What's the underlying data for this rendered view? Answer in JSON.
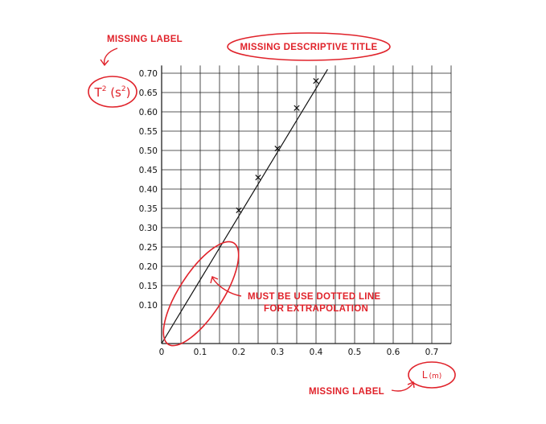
{
  "chart_data": {
    "type": "scatter",
    "xlim": [
      0,
      0.75
    ],
    "ylim": [
      0,
      0.7
    ],
    "x_ticks": [
      0,
      0.1,
      0.2,
      0.3,
      0.4,
      0.5,
      0.6,
      0.7
    ],
    "x_tick_labels": [
      "0",
      "0.1",
      "0.2",
      "0.3",
      "0.4",
      "0.5",
      "0.6",
      "0.7"
    ],
    "y_ticks": [
      0.1,
      0.15,
      0.2,
      0.25,
      0.3,
      0.35,
      0.4,
      0.45,
      0.5,
      0.55,
      0.6,
      0.65,
      0.7
    ],
    "y_tick_labels": [
      "0.10",
      "0.15",
      "0.20",
      "0.25",
      "0.30",
      "0.35",
      "0.40",
      "0.45",
      "0.50",
      "0.55",
      "0.60",
      "0.65",
      "0.70"
    ],
    "grid": true,
    "points": [
      {
        "x": 0.2,
        "y": 0.345
      },
      {
        "x": 0.25,
        "y": 0.43
      },
      {
        "x": 0.3,
        "y": 0.505
      },
      {
        "x": 0.35,
        "y": 0.61
      },
      {
        "x": 0.4,
        "y": 0.68
      }
    ],
    "fit_line": {
      "x": [
        0,
        0.43
      ],
      "y": [
        0,
        0.71
      ]
    }
  },
  "annotations": {
    "missing_title": "MISSING DESCRIPTIVE TITLE",
    "missing_y_label": "MISSING LABEL",
    "y_label_suggestion": {
      "base": "T",
      "sup1": "2",
      "mid": " (s",
      "sup2": "2",
      "end": ")"
    },
    "missing_x_label": "MISSING LABEL",
    "x_label_suggestion": {
      "base": "L",
      "unit": "(m)"
    },
    "extrapolation_note_line1": "MUST BE USE DOTTED LINE",
    "extrapolation_note_line2": "FOR EXTRAPOLATION"
  },
  "colors": {
    "annotation": "#e0222a",
    "ink": "#111111",
    "grid": "#222222"
  }
}
